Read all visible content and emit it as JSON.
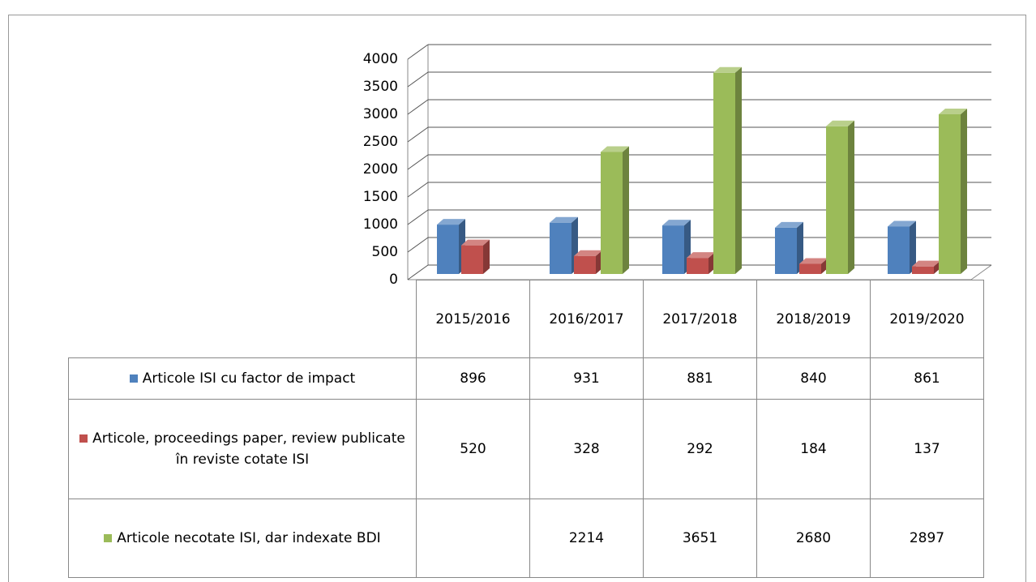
{
  "chart_data": {
    "type": "bar3d",
    "categories": [
      "2015/2016",
      "2016/2017",
      "2017/2018",
      "2018/2019",
      "2019/2020"
    ],
    "series": [
      {
        "name": "Articole ISI cu factor de impact",
        "color": "#4f81bd",
        "values": [
          896,
          931,
          881,
          840,
          861
        ]
      },
      {
        "name": "Articole, proceedings paper, review publicate în reviste cotate ISI",
        "color": "#c0504d",
        "values": [
          520,
          328,
          292,
          184,
          137
        ]
      },
      {
        "name": "Articole necotate ISI, dar indexate BDI",
        "color": "#9bbb59",
        "values": [
          null,
          2214,
          3651,
          2680,
          2897
        ]
      }
    ],
    "ylim": [
      0,
      4000
    ],
    "yticks": [
      0,
      500,
      1000,
      1500,
      2000,
      2500,
      3000,
      3500,
      4000
    ],
    "grid": true
  }
}
